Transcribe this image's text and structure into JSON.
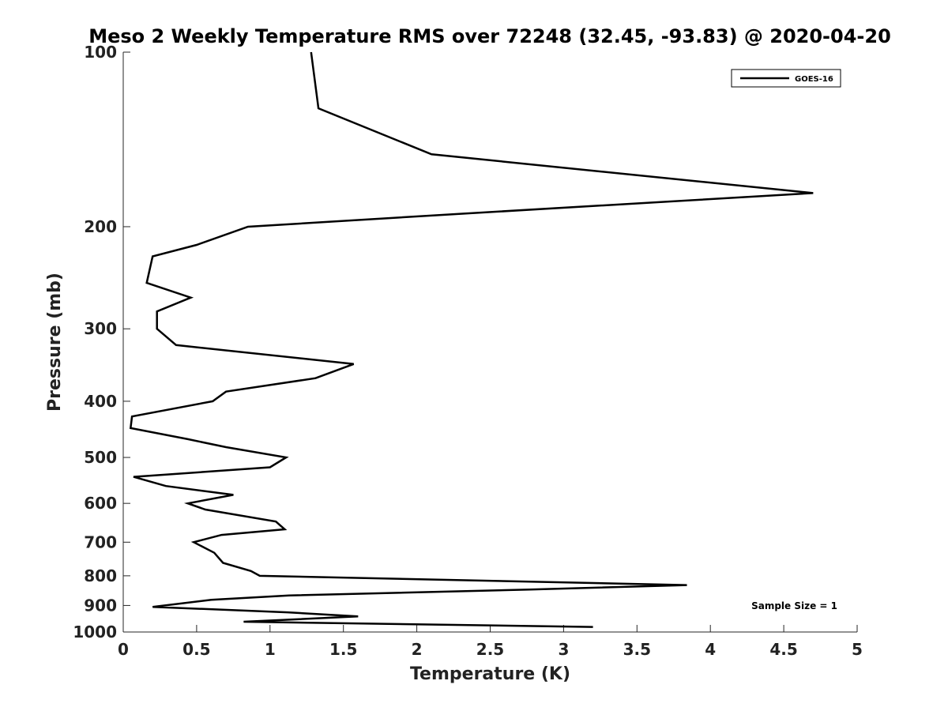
{
  "chart_data": {
    "type": "line",
    "title": "Meso 2 Weekly Temperature RMS over 72248 (32.45, -93.83) @ 2020-04-20",
    "xlabel": "Temperature (K)",
    "ylabel": "Pressure (mb)",
    "xlim": [
      0,
      5
    ],
    "ylim": [
      100,
      1000
    ],
    "y_scale": "log",
    "y_reversed": true,
    "x_ticks": [
      "0",
      "0.5",
      "1",
      "1.5",
      "2",
      "2.5",
      "3",
      "3.5",
      "4",
      "4.5",
      "5"
    ],
    "y_ticks": [
      "100",
      "200",
      "300",
      "400",
      "500",
      "600",
      "700",
      "800",
      "900",
      "1000"
    ],
    "grid": false,
    "legend_placement": "top-right",
    "series": [
      {
        "name": "GOES-16",
        "color": "#000000",
        "points": [
          [
            1.28,
            100
          ],
          [
            1.33,
            125
          ],
          [
            2.1,
            150
          ],
          [
            4.7,
            175
          ],
          [
            2.3,
            190
          ],
          [
            0.85,
            200
          ],
          [
            0.5,
            215
          ],
          [
            0.2,
            225
          ],
          [
            0.16,
            250
          ],
          [
            0.46,
            265
          ],
          [
            0.23,
            280
          ],
          [
            0.23,
            300
          ],
          [
            0.36,
            320
          ],
          [
            1.57,
            345
          ],
          [
            1.31,
            365
          ],
          [
            0.7,
            385
          ],
          [
            0.61,
            400
          ],
          [
            0.06,
            425
          ],
          [
            0.05,
            445
          ],
          [
            0.44,
            465
          ],
          [
            0.7,
            480
          ],
          [
            1.11,
            500
          ],
          [
            1.0,
            520
          ],
          [
            0.07,
            540
          ],
          [
            0.29,
            560
          ],
          [
            0.75,
            580
          ],
          [
            0.44,
            600
          ],
          [
            0.56,
            615
          ],
          [
            1.04,
            645
          ],
          [
            1.1,
            665
          ],
          [
            0.67,
            680
          ],
          [
            0.48,
            700
          ],
          [
            0.62,
            730
          ],
          [
            0.68,
            760
          ],
          [
            0.87,
            785
          ],
          [
            0.93,
            800
          ],
          [
            3.84,
            830
          ],
          [
            2.77,
            845
          ],
          [
            1.13,
            865
          ],
          [
            0.6,
            880
          ],
          [
            0.2,
            905
          ],
          [
            1.12,
            925
          ],
          [
            1.6,
            940
          ],
          [
            0.82,
            960
          ],
          [
            3.2,
            980
          ]
        ]
      }
    ],
    "annotations": [
      {
        "text": "Sample Size = 1",
        "placement": "bottom-right"
      }
    ]
  }
}
